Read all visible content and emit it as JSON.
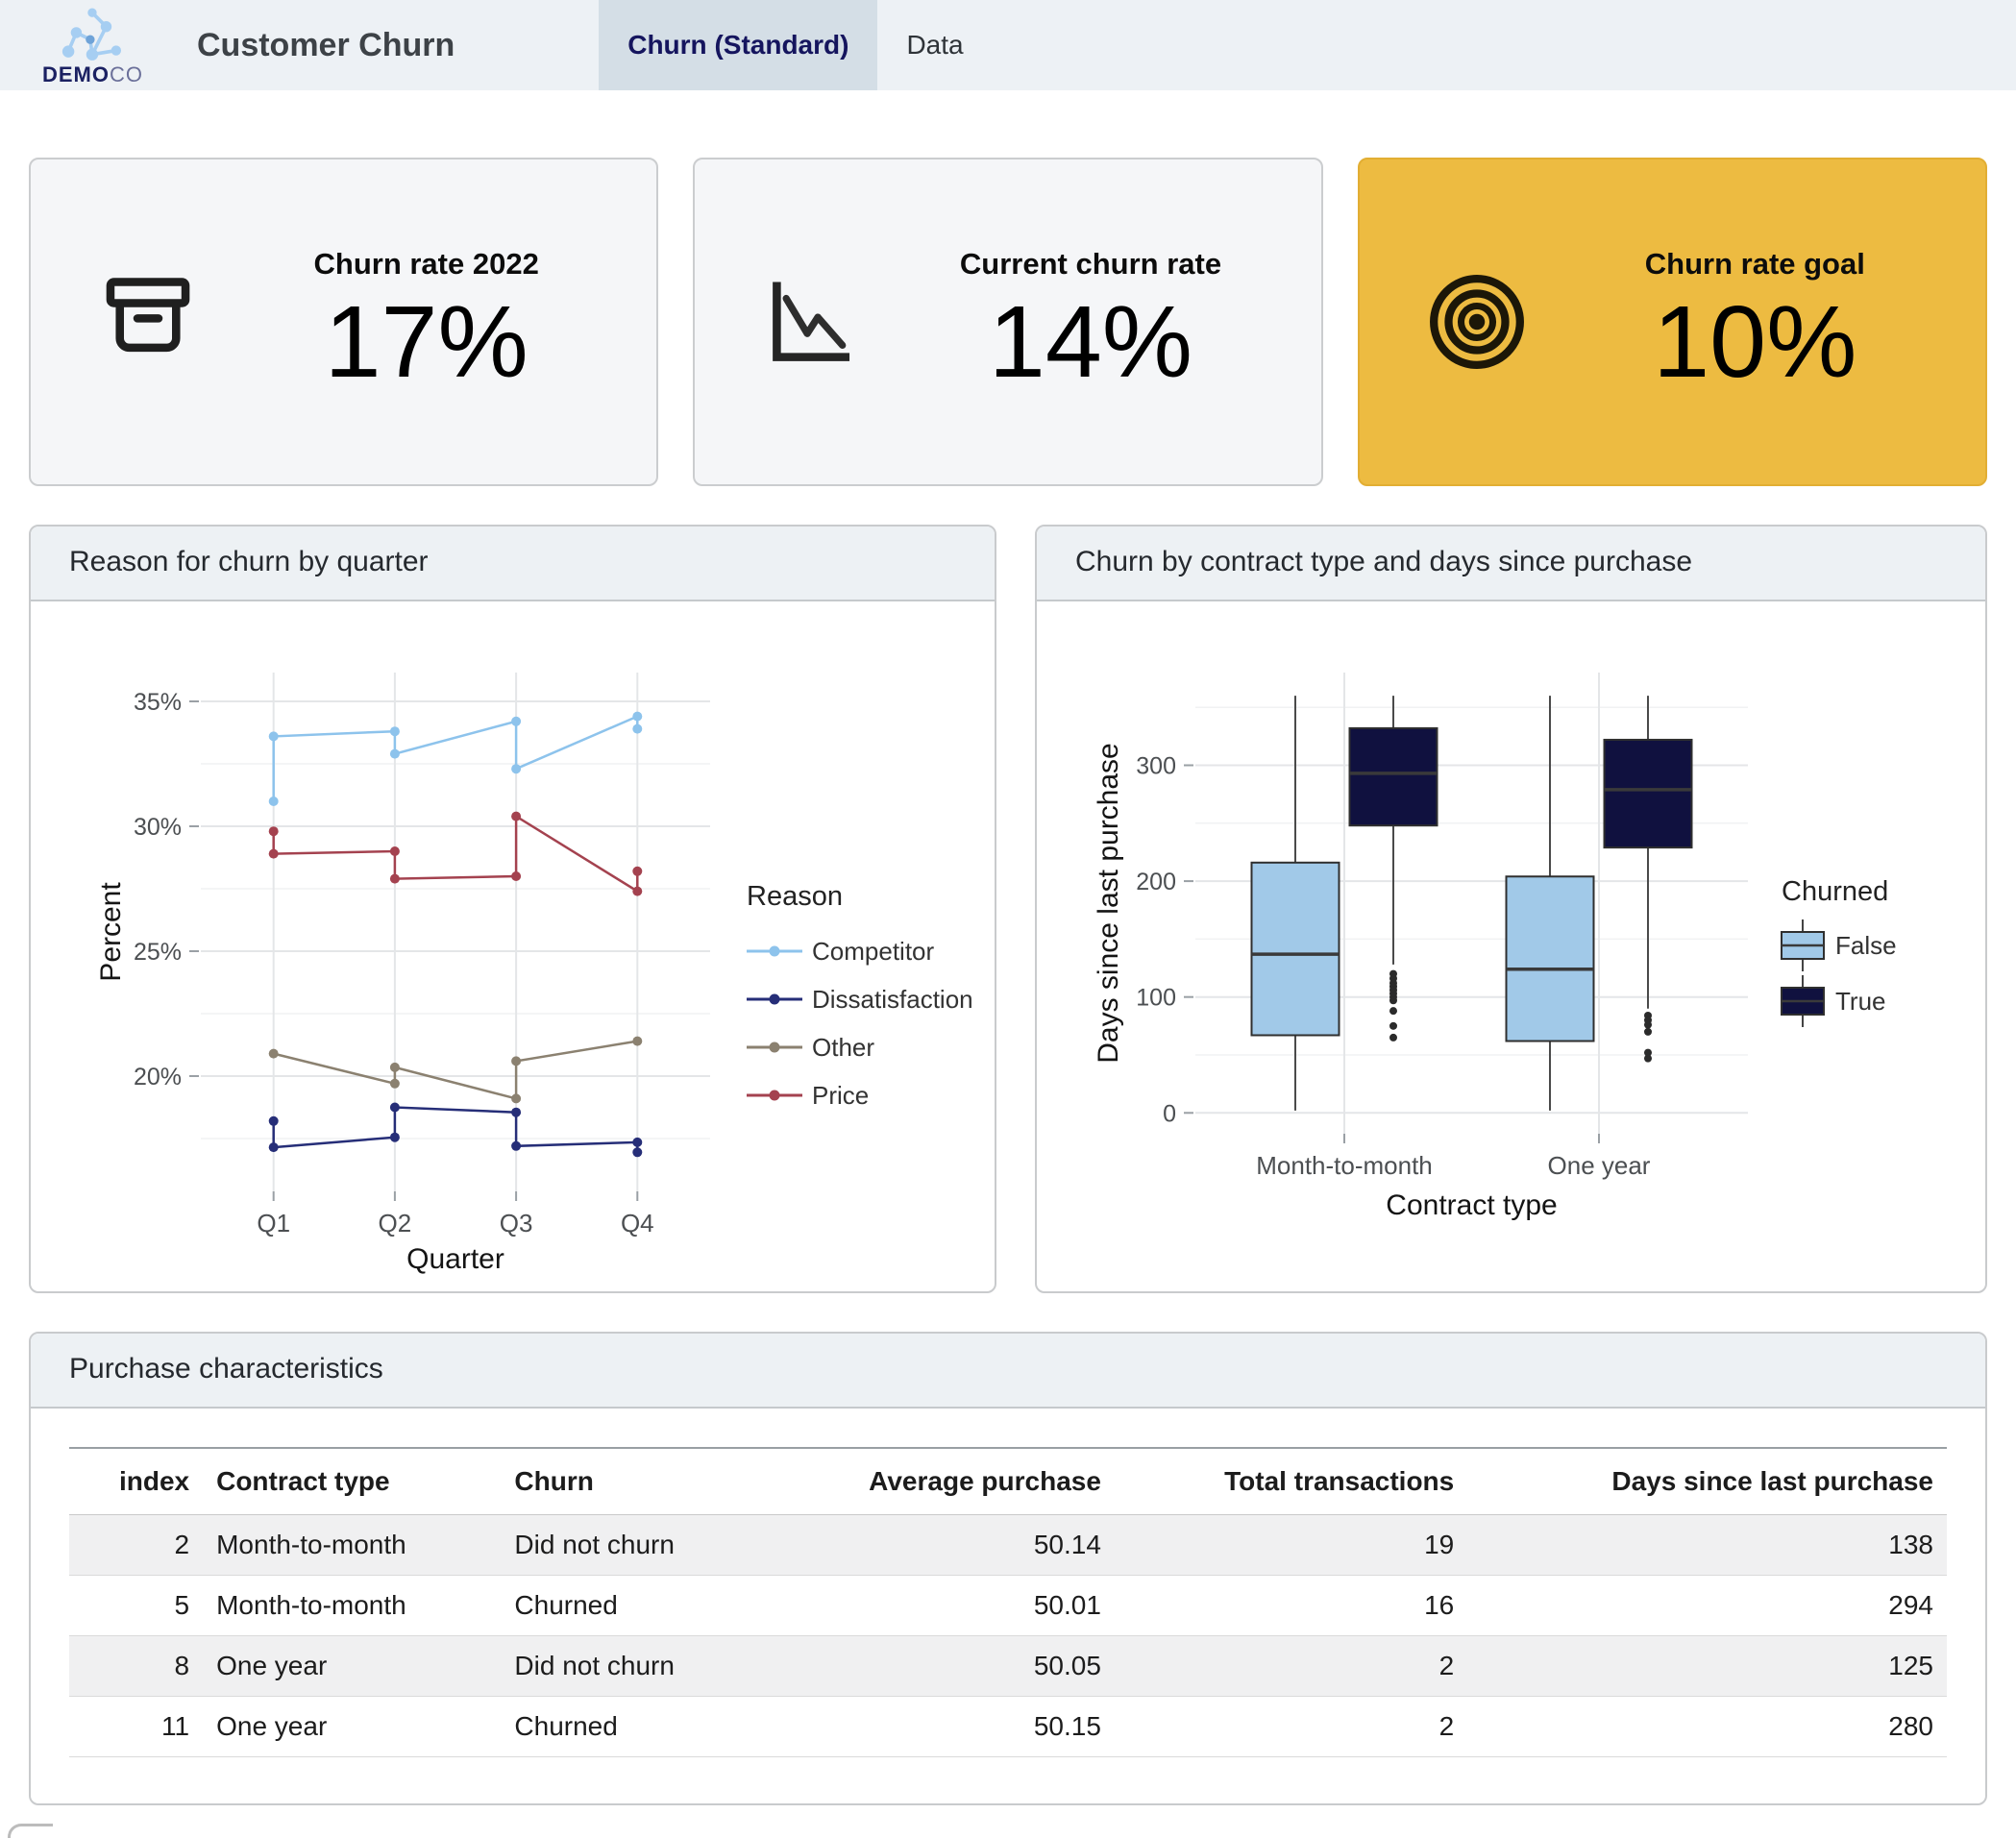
{
  "page": {
    "background": "#ffffff",
    "header_background": "#edf1f5",
    "accent_gold": "#edbb41"
  },
  "header": {
    "logo": {
      "icon": "molecule-network-icon",
      "brand_bold": "DEMO",
      "brand_light": "CO"
    },
    "title": "Customer Churn",
    "tabs": [
      {
        "label": "Churn (Standard)",
        "active": true
      },
      {
        "label": "Data",
        "active": false
      }
    ]
  },
  "kpi_cards": [
    {
      "icon": "archive-box-icon",
      "title": "Churn rate 2022",
      "value": "17%",
      "background": "#f5f6f8",
      "border": "#cbcdcf"
    },
    {
      "icon": "declining-line-chart-icon",
      "title": "Current churn rate",
      "value": "14%",
      "background": "#f5f6f8",
      "border": "#cbcdcf"
    },
    {
      "icon": "target-icon",
      "title": "Churn rate goal",
      "value": "10%",
      "background": "#edbb41",
      "border": "#e2ae33"
    }
  ],
  "chart_data": [
    {
      "type": "line",
      "title": "Reason for churn by quarter",
      "xlabel": "Quarter",
      "ylabel": "Percent",
      "categories": [
        "Q1",
        "Q2",
        "Q3",
        "Q4"
      ],
      "y_ticks": [
        {
          "value": 20,
          "label": "20%"
        },
        {
          "value": 25,
          "label": "25%"
        },
        {
          "value": 30,
          "label": "30%"
        },
        {
          "value": 35,
          "label": "35%"
        }
      ],
      "y_minor_ticks": [
        17.5,
        22.5,
        27.5,
        32.5
      ],
      "ylim": [
        16.3,
        35.8
      ],
      "grid": true,
      "legend": {
        "title": "Reason",
        "position": "right"
      },
      "series": [
        {
          "name": "Competitor",
          "color": "#8dc3ec",
          "points": [
            [
              1,
              31.0
            ],
            [
              1,
              33.6
            ],
            [
              2,
              33.8
            ],
            [
              2,
              32.9
            ],
            [
              3,
              34.2
            ],
            [
              3,
              32.3
            ],
            [
              4,
              34.4
            ],
            [
              4,
              33.9
            ]
          ]
        },
        {
          "name": "Dissatisfaction",
          "color": "#262e78",
          "points": [
            [
              1,
              18.2
            ],
            [
              1,
              17.15
            ],
            [
              2,
              17.55
            ],
            [
              2,
              18.75
            ],
            [
              3,
              18.55
            ],
            [
              3,
              17.2
            ],
            [
              4,
              17.35
            ],
            [
              4,
              16.95
            ]
          ]
        },
        {
          "name": "Other",
          "color": "#8b8170",
          "points": [
            [
              1,
              20.9
            ],
            [
              2,
              19.7
            ],
            [
              2,
              20.35
            ],
            [
              3,
              19.1
            ],
            [
              3,
              20.6
            ],
            [
              4,
              21.4
            ]
          ]
        },
        {
          "name": "Price",
          "color": "#a4424f",
          "points": [
            [
              1,
              29.8
            ],
            [
              1,
              28.9
            ],
            [
              2,
              29.0
            ],
            [
              2,
              27.9
            ],
            [
              3,
              28.0
            ],
            [
              3,
              30.4
            ],
            [
              4,
              27.4
            ],
            [
              4,
              28.2
            ]
          ]
        }
      ]
    },
    {
      "type": "boxplot",
      "title": "Churn by contract type and days since purchase",
      "xlabel": "Contract type",
      "ylabel": "Days since last purchase",
      "categories": [
        "Month-to-month",
        "One year"
      ],
      "y_ticks": [
        0,
        100,
        200,
        300
      ],
      "y_minor_ticks": [
        50,
        150,
        250,
        350
      ],
      "ylim": [
        -18,
        380
      ],
      "legend": {
        "title": "Churned",
        "position": "right"
      },
      "groups": [
        {
          "name": "False",
          "color": "#a1c9e8",
          "boxes": [
            {
              "category": "Month-to-month",
              "whisker_low": 2,
              "q1": 67,
              "median": 137,
              "q3": 216,
              "whisker_high": 360,
              "outliers": []
            },
            {
              "category": "One year",
              "whisker_low": 2,
              "q1": 62,
              "median": 124,
              "q3": 204,
              "whisker_high": 360,
              "outliers": []
            }
          ]
        },
        {
          "name": "True",
          "color": "#10113f",
          "boxes": [
            {
              "category": "Month-to-month",
              "whisker_low": 128,
              "q1": 248,
              "median": 293,
              "q3": 332,
              "whisker_high": 360,
              "outliers": [
                120,
                116,
                112,
                109,
                106,
                103,
                100,
                97,
                88,
                75,
                65
              ]
            },
            {
              "category": "One year",
              "whisker_low": 90,
              "q1": 229,
              "median": 279,
              "q3": 322,
              "whisker_high": 360,
              "outliers": [
                84,
                80,
                76,
                70,
                52,
                47
              ]
            }
          ]
        }
      ]
    }
  ],
  "table": {
    "title": "Purchase characteristics",
    "columns": [
      {
        "label": "index",
        "align": "right"
      },
      {
        "label": "Contract type",
        "align": "left"
      },
      {
        "label": "Churn",
        "align": "left"
      },
      {
        "label": "Average purchase",
        "align": "right"
      },
      {
        "label": "Total transactions",
        "align": "right"
      },
      {
        "label": "Days since last purchase",
        "align": "right"
      }
    ],
    "rows": [
      [
        "2",
        "Month-to-month",
        "Did not churn",
        "50.14",
        "19",
        "138"
      ],
      [
        "5",
        "Month-to-month",
        "Churned",
        "50.01",
        "16",
        "294"
      ],
      [
        "8",
        "One year",
        "Did not churn",
        "50.05",
        "2",
        "125"
      ],
      [
        "11",
        "One year",
        "Churned",
        "50.15",
        "2",
        "280"
      ]
    ]
  }
}
